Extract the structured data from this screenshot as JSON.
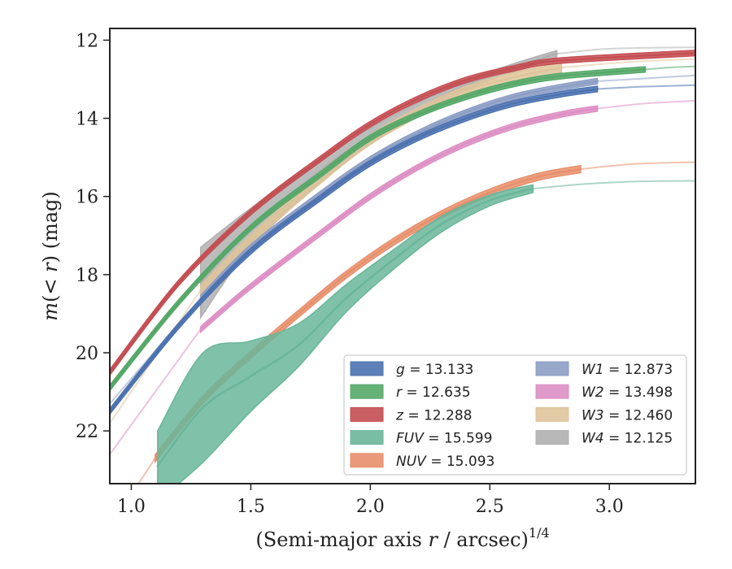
{
  "chart_data": {
    "type": "line",
    "xlabel": "(Semi-major axis r / arcsec)",
    "xlabel_exponent": "1/4",
    "ylabel_prefix": "m(",
    "ylabel_var": "< r",
    "ylabel_suffix": ") (mag)",
    "xlim": [
      0.91,
      3.36
    ],
    "ylim": [
      23.35,
      11.7
    ],
    "y_inverted": true,
    "xticks": [
      1.0,
      1.5,
      2.0,
      2.5,
      3.0
    ],
    "xtick_labels": [
      "1.0",
      "1.5",
      "2.0",
      "2.5",
      "3.0"
    ],
    "yticks": [
      12,
      14,
      16,
      18,
      20,
      22
    ],
    "ytick_labels": [
      "12",
      "14",
      "16",
      "18",
      "20",
      "22"
    ],
    "grid": false,
    "legend_position": "lower-right",
    "series": [
      {
        "name": "g",
        "value": "13.133",
        "color": "#4c72b0",
        "band": 0.07,
        "measured_x": [
          0.91,
          1.2,
          1.5,
          1.8,
          2.0,
          2.2,
          2.4,
          2.6,
          2.8,
          2.95
        ],
        "measured_y": [
          21.5,
          19.3,
          17.4,
          16.0,
          15.15,
          14.5,
          14.0,
          13.62,
          13.38,
          13.25
        ],
        "extrap_x": [
          2.95,
          3.1,
          3.2,
          3.36
        ],
        "extrap_y": [
          13.25,
          13.2,
          13.18,
          13.15
        ]
      },
      {
        "name": "r",
        "value": "12.635",
        "color": "#55a868",
        "band": 0.07,
        "measured_x": [
          0.91,
          1.2,
          1.5,
          1.8,
          2.0,
          2.2,
          2.4,
          2.6,
          2.8,
          3.15
        ],
        "measured_y": [
          20.9,
          18.7,
          16.8,
          15.4,
          14.5,
          13.9,
          13.45,
          13.12,
          12.92,
          12.75
        ],
        "extrap_x": [
          3.15,
          3.25,
          3.36
        ],
        "extrap_y": [
          12.75,
          12.7,
          12.67
        ]
      },
      {
        "name": "z",
        "value": "12.288",
        "color": "#c44e52",
        "band": 0.07,
        "measured_x": [
          0.91,
          1.2,
          1.5,
          1.8,
          2.0,
          2.2,
          2.4,
          2.6,
          2.8,
          3.36
        ],
        "measured_y": [
          20.5,
          18.2,
          16.4,
          15.0,
          14.15,
          13.5,
          13.02,
          12.72,
          12.52,
          12.33
        ],
        "extrap_x": [],
        "extrap_y": []
      },
      {
        "name": "FUV",
        "value": "15.599",
        "color": "#6ab69a",
        "band": 0.12,
        "band_widths": [
          0.9,
          1.4,
          0.9,
          0.55,
          0.35,
          0.25,
          0.2,
          0.14,
          0.1
        ],
        "measured_x": [
          1.11,
          1.3,
          1.5,
          1.7,
          1.9,
          2.1,
          2.3,
          2.5,
          2.68
        ],
        "measured_y": [
          22.9,
          21.4,
          20.6,
          19.8,
          18.6,
          17.6,
          16.7,
          16.1,
          15.8
        ],
        "extrap_x": [
          2.68,
          2.9,
          3.1,
          3.36
        ],
        "extrap_y": [
          15.8,
          15.68,
          15.62,
          15.6
        ]
      },
      {
        "name": "NUV",
        "value": "15.093",
        "color": "#e78f6b",
        "band": 0.09,
        "measured_x": [
          1.1,
          1.3,
          1.5,
          1.7,
          1.9,
          2.1,
          2.3,
          2.5,
          2.7,
          2.88
        ],
        "measured_y": [
          22.7,
          21.2,
          20.05,
          19.0,
          18.0,
          17.15,
          16.45,
          15.9,
          15.5,
          15.3
        ],
        "extrap_x": [
          1.03,
          1.1
        ],
        "extrap_y": [
          23.35,
          22.7
        ],
        "extrap2_x": [
          2.88,
          3.1,
          3.36
        ],
        "extrap2_y": [
          15.3,
          15.17,
          15.12
        ]
      },
      {
        "name": "W1",
        "value": "12.873",
        "color": "#8c9ec4",
        "band": 0.07,
        "measured_x": [
          1.29,
          1.5,
          1.8,
          2.0,
          2.2,
          2.4,
          2.6,
          2.8,
          2.95
        ],
        "measured_y": [
          18.6,
          17.3,
          15.9,
          15.05,
          14.38,
          13.85,
          13.45,
          13.2,
          13.05
        ],
        "extrap_x": [
          0.91,
          1.29
        ],
        "extrap_y": [
          21.3,
          18.6
        ],
        "extrap2_x": [
          2.95,
          3.15,
          3.36
        ],
        "extrap2_y": [
          13.05,
          12.98,
          12.9
        ]
      },
      {
        "name": "W2",
        "value": "13.498",
        "color": "#dd8fc4",
        "band": 0.07,
        "measured_x": [
          1.29,
          1.5,
          1.8,
          2.0,
          2.2,
          2.4,
          2.6,
          2.8,
          2.95
        ],
        "measured_y": [
          19.4,
          18.3,
          16.9,
          16.0,
          15.25,
          14.65,
          14.2,
          13.9,
          13.75
        ],
        "extrap_x": [
          0.91,
          1.29
        ],
        "extrap_y": [
          22.6,
          19.4
        ],
        "extrap2_x": [
          2.95,
          3.15,
          3.36
        ],
        "extrap2_y": [
          13.75,
          13.62,
          13.55
        ]
      },
      {
        "name": "W3",
        "value": "12.460",
        "color": "#dec49a",
        "band": 0.12,
        "measured_x": [
          1.29,
          1.5,
          1.8,
          2.0,
          2.2,
          2.4,
          2.6,
          2.8
        ],
        "measured_y": [
          18.4,
          17.1,
          15.5,
          14.55,
          13.85,
          13.3,
          12.95,
          12.7
        ],
        "extrap_x": [
          0.91,
          1.29
        ],
        "extrap_y": [
          21.8,
          18.4
        ],
        "extrap2_x": [
          2.8,
          3.1,
          3.36
        ],
        "extrap2_y": [
          12.7,
          12.55,
          12.48
        ]
      },
      {
        "name": "W4",
        "value": "12.125",
        "color": "#b0b0b0",
        "band": 0.18,
        "band_widths": [
          0.9,
          0.5,
          0.3,
          0.2,
          0.15,
          0.12,
          0.1,
          0.08
        ],
        "measured_x": [
          1.29,
          1.5,
          1.8,
          2.0,
          2.2,
          2.4,
          2.6,
          2.78
        ],
        "measured_y": [
          18.2,
          16.8,
          15.3,
          14.45,
          13.75,
          13.15,
          12.7,
          12.35
        ],
        "extrap_x": [
          2.78,
          3.0,
          3.36
        ],
        "extrap_y": [
          12.35,
          12.22,
          12.18
        ]
      }
    ],
    "legend": [
      {
        "name": "g",
        "text": "= 13.133"
      },
      {
        "name": "r",
        "text": "= 12.635"
      },
      {
        "name": "z",
        "text": "= 12.288"
      },
      {
        "name": "FUV",
        "text": "= 15.599"
      },
      {
        "name": "NUV",
        "text": "= 15.093"
      },
      {
        "name": "W1",
        "text": "= 12.873"
      },
      {
        "name": "W2",
        "text": "= 13.498"
      },
      {
        "name": "W3",
        "text": "= 12.460"
      },
      {
        "name": "W4",
        "text": "= 12.125"
      }
    ]
  }
}
